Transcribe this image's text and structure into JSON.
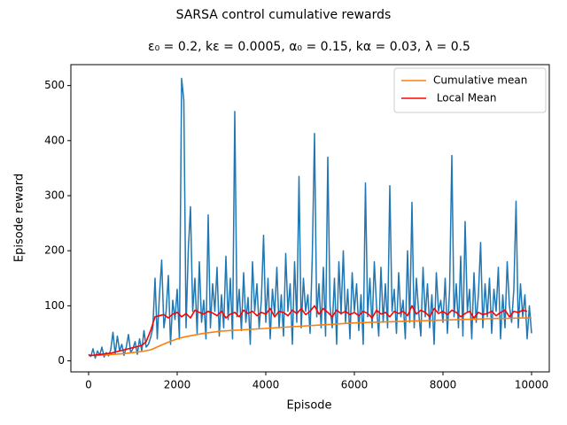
{
  "chart_data": {
    "type": "line",
    "title": "SARSA control cumulative rewards",
    "subtitle": "ε₀ = 0.2, kε = 0.0005, α₀ = 0.15, kα = 0.03, λ = 0.5",
    "xlabel": "Episode",
    "ylabel": "Episode reward",
    "xlim": [
      -400,
      10400
    ],
    "ylim": [
      -20,
      538
    ],
    "xticks": [
      0,
      2000,
      4000,
      6000,
      8000,
      10000
    ],
    "yticks": [
      0,
      100,
      200,
      300,
      400,
      500
    ],
    "legend": "upper right",
    "series": [
      {
        "color": "#1f77b4",
        "x": [
          0,
          50,
          100,
          150,
          200,
          250,
          300,
          350,
          400,
          450,
          500,
          550,
          600,
          650,
          700,
          750,
          800,
          850,
          900,
          950,
          1000,
          1050,
          1100,
          1150,
          1200,
          1250,
          1300,
          1350,
          1400,
          1450,
          1500,
          1550,
          1600,
          1650,
          1700,
          1750,
          1800,
          1850,
          1900,
          1950,
          2000,
          2050,
          2100,
          2150,
          2200,
          2250,
          2300,
          2350,
          2400,
          2450,
          2500,
          2550,
          2600,
          2650,
          2700,
          2750,
          2800,
          2850,
          2900,
          2950,
          3000,
          3050,
          3100,
          3150,
          3200,
          3250,
          3300,
          3350,
          3400,
          3450,
          3500,
          3550,
          3600,
          3650,
          3700,
          3750,
          3800,
          3850,
          3900,
          3950,
          4000,
          4050,
          4100,
          4150,
          4200,
          4250,
          4300,
          4350,
          4400,
          4450,
          4500,
          4550,
          4600,
          4650,
          4700,
          4750,
          4800,
          4850,
          4900,
          4950,
          5000,
          5050,
          5100,
          5150,
          5200,
          5250,
          5300,
          5350,
          5400,
          5450,
          5500,
          5550,
          5600,
          5650,
          5700,
          5750,
          5800,
          5850,
          5900,
          5950,
          6000,
          6050,
          6100,
          6150,
          6200,
          6250,
          6300,
          6350,
          6400,
          6450,
          6500,
          6550,
          6600,
          6650,
          6700,
          6750,
          6800,
          6850,
          6900,
          6950,
          7000,
          7050,
          7100,
          7150,
          7200,
          7250,
          7300,
          7350,
          7400,
          7450,
          7500,
          7550,
          7600,
          7650,
          7700,
          7750,
          7800,
          7850,
          7900,
          7950,
          8000,
          8050,
          8100,
          8150,
          8200,
          8250,
          8300,
          8350,
          8400,
          8450,
          8500,
          8550,
          8600,
          8650,
          8700,
          8750,
          8800,
          8850,
          8900,
          8950,
          9000,
          9050,
          9100,
          9150,
          9200,
          9250,
          9300,
          9350,
          9400,
          9450,
          9500,
          9550,
          9600,
          9650,
          9700,
          9750,
          9800,
          9850,
          9900,
          9950,
          10000
        ],
        "values": [
          12,
          8,
          22,
          5,
          18,
          10,
          25,
          7,
          15,
          9,
          20,
          52,
          12,
          45,
          18,
          30,
          10,
          25,
          48,
          15,
          22,
          35,
          12,
          40,
          18,
          55,
          25,
          30,
          42,
          60,
          150,
          40,
          120,
          183,
          60,
          90,
          155,
          30,
          110,
          75,
          130,
          40,
          513,
          473,
          60,
          200,
          280,
          90,
          150,
          50,
          180,
          70,
          110,
          40,
          265,
          60,
          140,
          90,
          170,
          45,
          120,
          60,
          190,
          75,
          150,
          40,
          453,
          80,
          130,
          55,
          160,
          70,
          115,
          30,
          180,
          90,
          140,
          60,
          110,
          228,
          70,
          150,
          40,
          130,
          85,
          170,
          60,
          120,
          45,
          195,
          90,
          140,
          30,
          180,
          70,
          335,
          60,
          150,
          90,
          120,
          50,
          190,
          413,
          80,
          140,
          60,
          170,
          45,
          370,
          100,
          60,
          150,
          30,
          180,
          85,
          200,
          70,
          130,
          40,
          160,
          90,
          140,
          55,
          120,
          30,
          323,
          80,
          150,
          60,
          180,
          100,
          45,
          170,
          70,
          140,
          60,
          318,
          90,
          130,
          50,
          160,
          80,
          110,
          40,
          200,
          70,
          288,
          60,
          150,
          90,
          45,
          170,
          80,
          140,
          60,
          120,
          30,
          160,
          90,
          110,
          70,
          150,
          50,
          130,
          373,
          80,
          140,
          60,
          190,
          45,
          253,
          90,
          130,
          40,
          160,
          70,
          120,
          215,
          60,
          140,
          80,
          150,
          50,
          130,
          90,
          170,
          40,
          120,
          60,
          180,
          100,
          70,
          130,
          290,
          60,
          140,
          80,
          120,
          40,
          100,
          50
        ]
      },
      {
        "name": "Cumulative mean",
        "color": "#ff7f0e",
        "x": [
          0,
          200,
          400,
          600,
          800,
          1000,
          1200,
          1400,
          1600,
          1800,
          2000,
          2200,
          2400,
          2600,
          2800,
          3000,
          3200,
          3400,
          3600,
          3800,
          4000,
          4200,
          4400,
          4600,
          4800,
          5000,
          5200,
          5400,
          5600,
          5800,
          6000,
          6200,
          6400,
          6600,
          6800,
          7000,
          7200,
          7400,
          7600,
          7800,
          8000,
          8200,
          8400,
          8600,
          8800,
          9000,
          9200,
          9400,
          9600,
          9800,
          10000
        ],
        "values": [
          10,
          10,
          11,
          12,
          13,
          15,
          17,
          20,
          27,
          34,
          40,
          44,
          47,
          50,
          52,
          54,
          55,
          56,
          57,
          58,
          59,
          60,
          61,
          62,
          63,
          64,
          65,
          66,
          67,
          68,
          69,
          69.5,
          70,
          70.5,
          71,
          71.5,
          72,
          72.5,
          73,
          73.5,
          74,
          74.5,
          75,
          75.5,
          76,
          76.5,
          77,
          77,
          77.5,
          78,
          78
        ]
      },
      {
        "name": " Local Mean",
        "color": "red",
        "x": [
          0,
          100,
          200,
          300,
          400,
          500,
          600,
          700,
          800,
          900,
          1000,
          1100,
          1200,
          1300,
          1400,
          1500,
          1600,
          1700,
          1800,
          1900,
          2000,
          2100,
          2200,
          2300,
          2400,
          2500,
          2600,
          2700,
          2800,
          2900,
          3000,
          3100,
          3200,
          3300,
          3400,
          3500,
          3600,
          3700,
          3800,
          3900,
          4000,
          4100,
          4200,
          4300,
          4400,
          4500,
          4600,
          4700,
          4800,
          4900,
          5000,
          5100,
          5200,
          5300,
          5400,
          5500,
          5600,
          5700,
          5800,
          5900,
          6000,
          6100,
          6200,
          6300,
          6400,
          6500,
          6600,
          6700,
          6800,
          6900,
          7000,
          7100,
          7200,
          7300,
          7400,
          7500,
          7600,
          7700,
          7800,
          7900,
          8000,
          8100,
          8200,
          8300,
          8400,
          8500,
          8600,
          8700,
          8800,
          8900,
          9000,
          9100,
          9200,
          9300,
          9400,
          9500,
          9600,
          9700,
          9800,
          9900
        ],
        "values": [
          10,
          10,
          11,
          12,
          13,
          14,
          16,
          18,
          20,
          22,
          24,
          26,
          28,
          35,
          55,
          80,
          82,
          84,
          78,
          85,
          88,
          80,
          86,
          78,
          92,
          88,
          85,
          90,
          87,
          82,
          90,
          78,
          85,
          88,
          80,
          92,
          86,
          90,
          82,
          88,
          85,
          95,
          80,
          90,
          88,
          82,
          92,
          86,
          95,
          84,
          90,
          100,
          85,
          95,
          88,
          80,
          92,
          86,
          90,
          84,
          88,
          82,
          90,
          86,
          78,
          92,
          85,
          88,
          80,
          90,
          86,
          90,
          82,
          100,
          85,
          92,
          88,
          80,
          95,
          86,
          90,
          84,
          92,
          88,
          80,
          86,
          90,
          78,
          88,
          84,
          86,
          90,
          82,
          88,
          92,
          80,
          90,
          88,
          92,
          90
        ]
      }
    ]
  }
}
